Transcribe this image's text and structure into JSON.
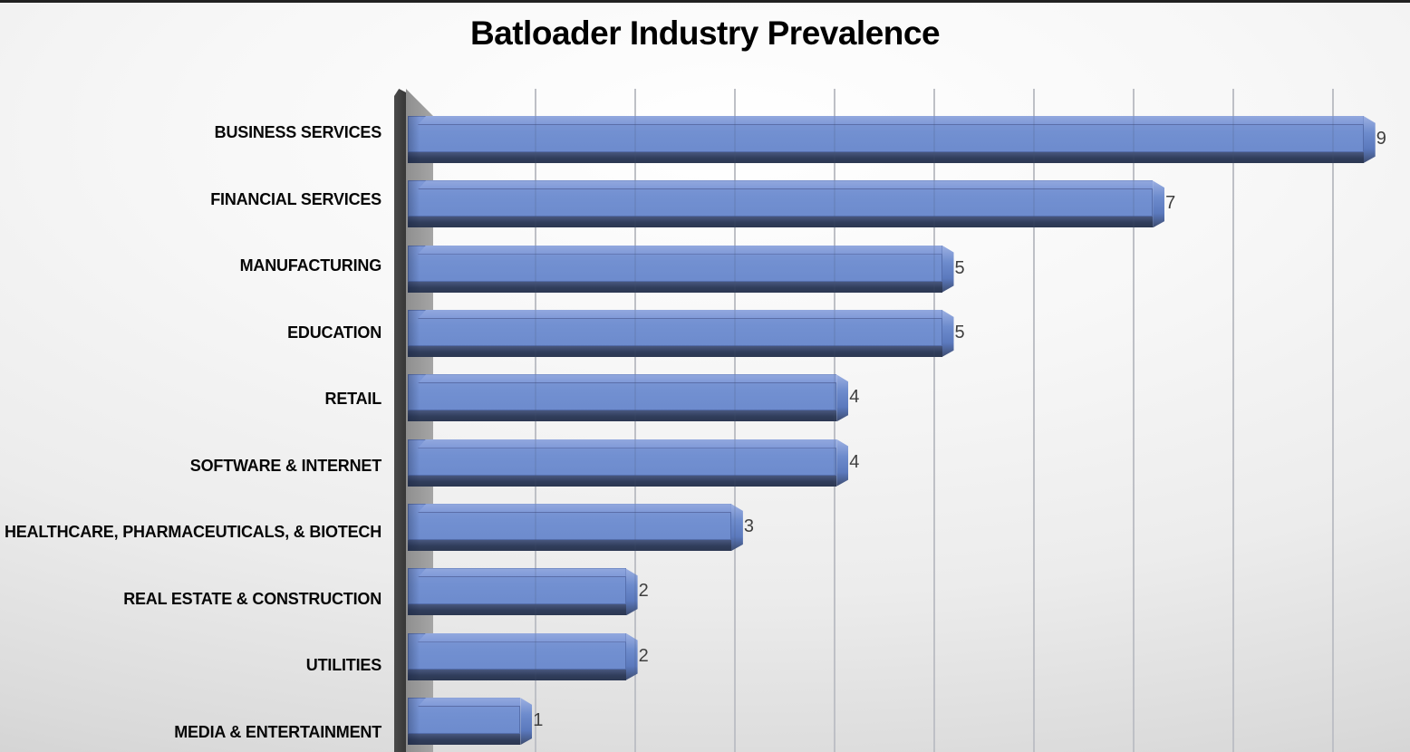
{
  "title": "Batloader Industry Prevalence",
  "chart_data": {
    "type": "bar",
    "orientation": "horizontal",
    "title": "Batloader Industry Prevalence",
    "categories": [
      "BUSINESS SERVICES",
      "FINANCIAL SERVICES",
      "MANUFACTURING",
      "EDUCATION",
      "RETAIL",
      "SOFTWARE & INTERNET",
      "HEALTHCARE, PHARMACEUTICALS, & BIOTECH",
      "REAL ESTATE & CONSTRUCTION",
      "UTILITIES",
      "MEDIA & ENTERTAINMENT"
    ],
    "values": [
      9,
      7,
      5,
      5,
      4,
      4,
      3,
      2,
      2,
      1
    ],
    "value_labels": [
      "9",
      "7",
      "5",
      "5",
      "4",
      "4",
      "3",
      "2",
      "2",
      "1"
    ],
    "xlim": [
      0,
      9
    ],
    "gridlines": {
      "visible": true,
      "interval": 1,
      "orientation": "vertical"
    },
    "legend": "none",
    "bar_style": "3d-bevel",
    "sorted": "descending",
    "colors": {
      "bar_face": "#7290d1",
      "bar_bevel_top": "#8fa6dd",
      "bar_bottom_shadow": "#2c3852",
      "axis_wall_front": "#3f3f3f",
      "axis_wall_side": "#9a9a9a",
      "gridline": "#d2d2d4",
      "value_label": "#3f3f3f",
      "category_label": "#060606",
      "title": "#000000",
      "background_edge": "#c9c9c9",
      "background_center": "#ffffff",
      "top_strip": "#212121"
    }
  }
}
